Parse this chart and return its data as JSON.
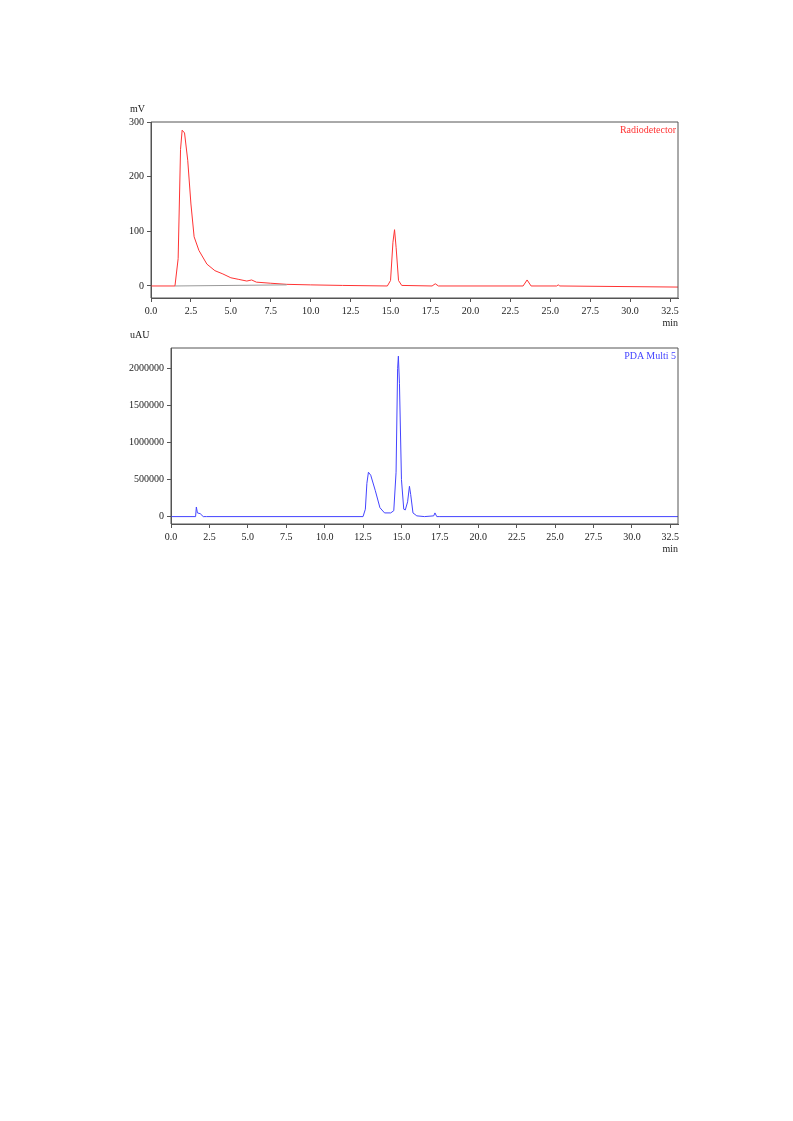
{
  "chart_data": [
    {
      "type": "line",
      "ylabel": "mV",
      "xlabel": "min",
      "legend": "top right",
      "grid": false,
      "marker": "none",
      "line_style": "solid",
      "xlim": [
        0,
        33
      ],
      "ylim": [
        -22,
        300
      ],
      "xticks": [
        {
          "value": 0,
          "label": "0.0"
        },
        2.5,
        {
          "value": 5,
          "label": "5.0"
        },
        7.5,
        {
          "value": 10,
          "label": "10.0"
        },
        12.5,
        {
          "value": 15,
          "label": "15.0"
        },
        17.5,
        {
          "value": 20,
          "label": "20.0"
        },
        22.5,
        {
          "value": 25,
          "label": "25.0"
        },
        27.5,
        {
          "value": 30,
          "label": "30.0"
        },
        32.5
      ],
      "yticks": [
        0,
        100,
        200,
        300
      ],
      "series": [
        {
          "name": "Radiodetector",
          "color": "#ff3333",
          "x": [
            0,
            1.5,
            1.7,
            1.85,
            1.95,
            2.1,
            2.3,
            2.5,
            2.7,
            3.0,
            3.5,
            4.0,
            4.5,
            5.0,
            5.5,
            6.0,
            6.3,
            6.6,
            7.5,
            8.5,
            10,
            12,
            14.8,
            15.0,
            15.15,
            15.25,
            15.35,
            15.5,
            15.7,
            17.6,
            17.8,
            18,
            23.3,
            23.55,
            23.8,
            25.4,
            25.5,
            25.6,
            33
          ],
          "values": [
            0,
            0,
            50,
            250,
            285,
            280,
            230,
            150,
            90,
            65,
            40,
            28,
            22,
            15,
            12,
            9,
            11,
            7,
            5,
            3,
            2,
            1,
            0,
            10,
            80,
            103,
            70,
            10,
            1,
            0,
            4,
            0,
            0,
            11,
            0,
            0,
            2,
            0,
            -2
          ]
        },
        {
          "color": "#999999",
          "x": [
            1.5,
            8.5
          ],
          "values": [
            0,
            2
          ]
        }
      ]
    },
    {
      "type": "line",
      "ylabel": "uAU",
      "xlabel": "min",
      "legend": "top right",
      "grid": false,
      "marker": "none",
      "line_style": "solid",
      "xlim": [
        0,
        33
      ],
      "ylim": [
        -100000,
        2280000
      ],
      "xticks": [
        {
          "value": 0,
          "label": "0.0"
        },
        2.5,
        {
          "value": 5,
          "label": "5.0"
        },
        7.5,
        {
          "value": 10,
          "label": "10.0"
        },
        12.5,
        {
          "value": 15,
          "label": "15.0"
        },
        17.5,
        {
          "value": 20,
          "label": "20.0"
        },
        22.5,
        {
          "value": 25,
          "label": "25.0"
        },
        27.5,
        {
          "value": 30,
          "label": "30.0"
        },
        32.5
      ],
      "yticks": [
        0,
        500000,
        1000000,
        1500000,
        2000000
      ],
      "series": [
        {
          "name": "PDA Multi 5",
          "color": "#4444ff",
          "x": [
            0,
            1.6,
            1.65,
            1.72,
            1.9,
            2.1,
            2.3,
            12.5,
            12.65,
            12.75,
            12.85,
            13.0,
            13.3,
            13.6,
            13.9,
            14.3,
            14.5,
            14.65,
            14.75,
            14.8,
            14.87,
            15.0,
            15.15,
            15.25,
            15.4,
            15.52,
            15.6,
            15.75,
            16,
            16.5,
            17.1,
            17.18,
            17.3,
            17.5,
            33
          ],
          "values": [
            0,
            0,
            130000,
            50000,
            40000,
            0,
            0,
            0,
            100000,
            450000,
            600000,
            560000,
            350000,
            120000,
            50000,
            50000,
            80000,
            600000,
            2000000,
            2170000,
            1800000,
            500000,
            100000,
            90000,
            200000,
            410000,
            300000,
            50000,
            10000,
            0,
            10000,
            50000,
            0,
            0,
            0
          ]
        }
      ]
    }
  ]
}
